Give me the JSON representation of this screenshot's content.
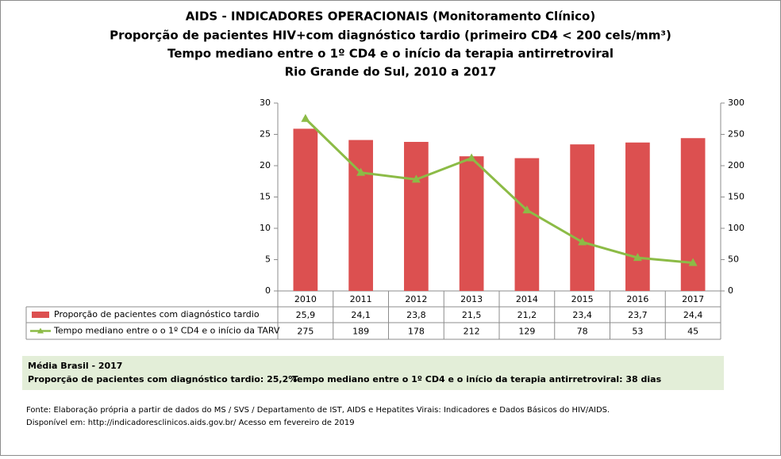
{
  "chart_data": {
    "type": "bar",
    "title": "AIDS - INDICADORES OPERACIONAIS (Monitoramento Clínico)",
    "subtitles": [
      "Proporção de pacientes HIV+com diagnóstico tardio (primeiro CD4 < 200 cels/mm³)",
      "Tempo mediano entre o 1º CD4 e o início da terapia antirretroviral",
      "Rio Grande do Sul, 2010 a 2017"
    ],
    "categories": [
      "2010",
      "2011",
      "2012",
      "2013",
      "2014",
      "2015",
      "2016",
      "2017"
    ],
    "series": [
      {
        "name": "Proporção de pacientes com diagnóstico tardio",
        "type": "bar",
        "color": "#dc5050",
        "values": [
          25.9,
          24.1,
          23.8,
          21.5,
          21.2,
          23.4,
          23.7,
          24.4
        ],
        "value_labels": [
          "25,9",
          "24,1",
          "23,8",
          "21,5",
          "21,2",
          "23,4",
          "23,7",
          "24,4"
        ]
      },
      {
        "name": "Tempo mediano entre o o 1º CD4 e o início da TARV",
        "type": "line",
        "axis": "y2",
        "color": "#8cbb46",
        "values": [
          275,
          189,
          178,
          212,
          129,
          78,
          53,
          45
        ]
      }
    ],
    "ylim": [
      0,
      30
    ],
    "yticks": [
      0,
      5,
      10,
      15,
      20,
      25,
      30
    ],
    "y2lim": [
      0,
      300
    ],
    "y2ticks": [
      0,
      50,
      100,
      150,
      200,
      250,
      300
    ],
    "grid": false
  },
  "note": {
    "title": "Média Brasil - 2017",
    "items": [
      "Proporção de pacientes com diagnóstico  tardio: 25,2%",
      "Tempo mediano entre o 1º CD4 e o início da terapia antirretroviral: 38 dias"
    ]
  },
  "source": [
    "Fonte: Elaboração própria a partir de dados do  MS / SVS / Departamento de IST, AIDS e Hepatites Virais: Indicadores e Dados Básicos do HIV/AIDS.",
    "Disponível em: http://indicadoresclinicos.aids.gov.br/ Acesso em fevereiro de 2019"
  ]
}
